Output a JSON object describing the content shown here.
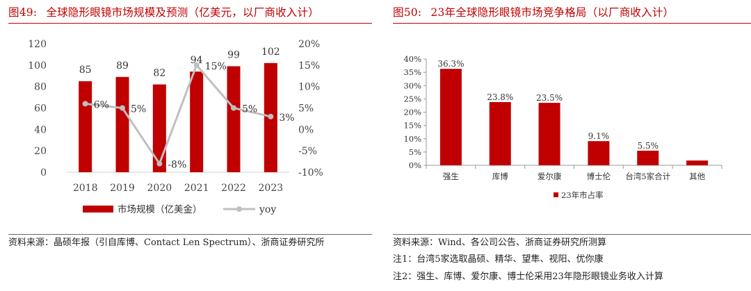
{
  "left": {
    "fig_label": "图49:",
    "title": "全球隐形眼镜市场规模及预测（亿美元，以厂商收入计）",
    "source": "资料来源：晶硕年报（引自库博、Contact Len Spectrum）、浙商证券研究所",
    "chart_data": {
      "type": "bar+line",
      "categories": [
        "2018",
        "2019",
        "2020",
        "2021",
        "2022",
        "2023"
      ],
      "series": [
        {
          "name": "市场规模（亿美金）",
          "kind": "bar",
          "axis": "left",
          "color": "#c00000",
          "values": [
            85,
            89,
            82,
            94,
            99,
            102
          ],
          "labels": [
            "85",
            "89",
            "82",
            "94",
            "99",
            "102"
          ]
        },
        {
          "name": "yoy",
          "kind": "line",
          "axis": "right",
          "color": "#bfbfbf",
          "values": [
            6,
            5,
            -8,
            15,
            5,
            3
          ],
          "labels": [
            "6%",
            "5%",
            "-8%",
            "15%",
            "5%",
            "3%"
          ]
        }
      ],
      "y_left": {
        "min": 0,
        "max": 120,
        "ticks": [
          "0",
          "20",
          "40",
          "60",
          "80",
          "100",
          "120"
        ]
      },
      "y_right": {
        "min": -10,
        "max": 20,
        "ticks": [
          "-10%",
          "-5%",
          "0%",
          "5%",
          "10%",
          "15%",
          "20%"
        ]
      },
      "grid": false,
      "legend_position": "bottom"
    }
  },
  "right": {
    "fig_label": "图50:",
    "title": "23年全球隐形眼镜市场竞争格局（以厂商收入计）",
    "notes": [
      "资料来源：Wind、各公司公告、浙商证券研究所测算",
      "注1：台湾5家选取晶硕、精华、望隼、视阳、优你康",
      "注2：强生、库博、爱尔康、博士伦采用23年隐形眼镜业务收入计算"
    ],
    "chart_data": {
      "type": "bar",
      "categories": [
        "强生",
        "库博",
        "爱尔康",
        "博士伦",
        "台湾5家合计",
        "其他"
      ],
      "series": [
        {
          "name": "23年市占率",
          "color": "#c00000",
          "values": [
            36.3,
            23.8,
            23.5,
            9.1,
            5.5,
            1.8
          ],
          "labels": [
            "36.3%",
            "23.8%",
            "23.5%",
            "9.1%",
            "5.5%",
            ""
          ]
        }
      ],
      "y": {
        "min": 0,
        "max": 40,
        "ticks": [
          "0%",
          "5%",
          "10%",
          "15%",
          "20%",
          "25%",
          "30%",
          "35%",
          "40%"
        ]
      },
      "grid": false,
      "legend_position": "bottom-left"
    }
  }
}
